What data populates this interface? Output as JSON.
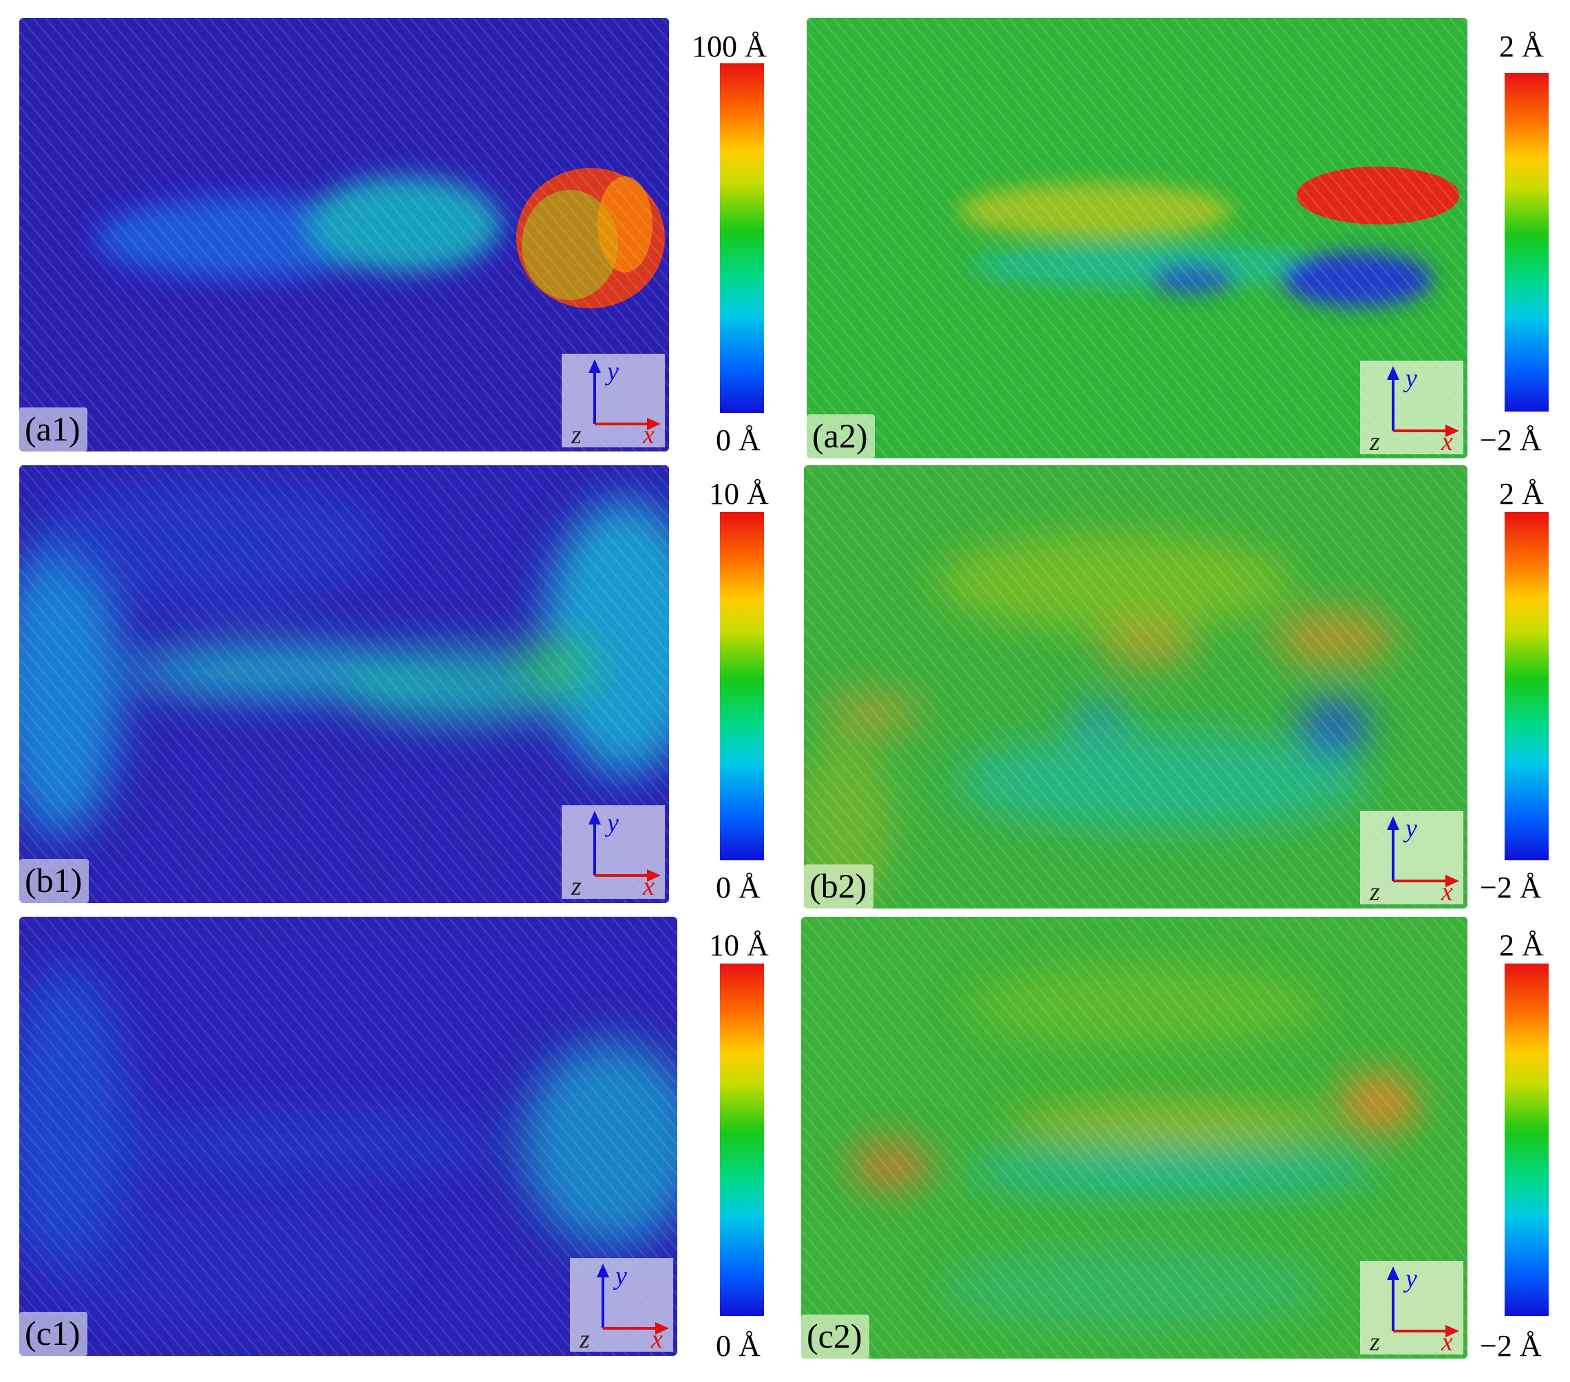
{
  "panels": {
    "a1": {
      "label": "(a1)",
      "bg": "#2b1fb0"
    },
    "a2": {
      "label": "(a2)",
      "bg": "#2fb339"
    },
    "b1": {
      "label": "(b1)",
      "bg": "#2a22b2"
    },
    "b2": {
      "label": "(b2)",
      "bg": "#3bae3c"
    },
    "c1": {
      "label": "(c1)",
      "bg": "#2b22b3"
    },
    "c2": {
      "label": "(c2)",
      "bg": "#3cb038"
    }
  },
  "colorbars": {
    "a1": {
      "max": "100 Å",
      "min": "0 Å"
    },
    "a2": {
      "max": "2 Å",
      "min": "−2 Å"
    },
    "b1": {
      "max": "10 Å",
      "min": "0 Å"
    },
    "b2": {
      "max": "2 Å",
      "min": "−2 Å"
    },
    "c1": {
      "max": "10 Å",
      "min": "0 Å"
    },
    "c2": {
      "max": "2 Å",
      "min": "−2 Å"
    }
  },
  "axes": {
    "x": "x",
    "y": "y",
    "z": "z",
    "x_color": "#e01010",
    "y_color": "#1010e0"
  },
  "colormap": [
    "#1010d8",
    "#0060ff",
    "#00c8e8",
    "#00d890",
    "#18c818",
    "#c8dc00",
    "#ffcc00",
    "#ff7000",
    "#e81010"
  ]
}
